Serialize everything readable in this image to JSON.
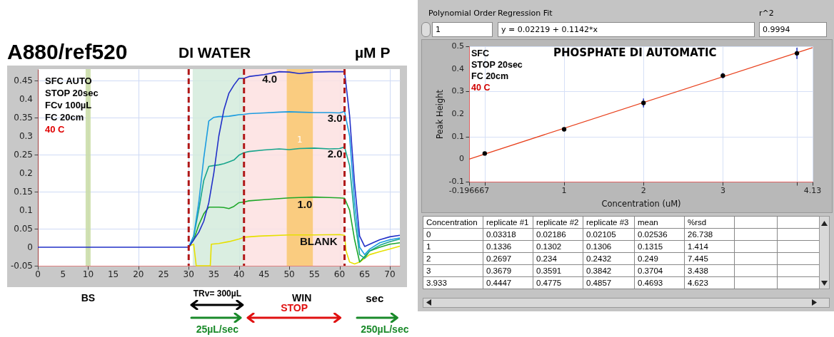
{
  "chart_data": [
    {
      "type": "line",
      "title": "A880/ref520",
      "subtitle": "DI WATER",
      "legend_title": "µM P",
      "xlabel": "sec",
      "xlim": [
        0,
        72
      ],
      "xticks": [
        0,
        5,
        10,
        15,
        20,
        25,
        30,
        35,
        40,
        45,
        50,
        55,
        60,
        65,
        70
      ],
      "ylim": [
        -0.05,
        0.48
      ],
      "yticks": [
        -0.05,
        0,
        0.05,
        0.1,
        0.15,
        0.2,
        0.25,
        0.3,
        0.35,
        0.4,
        0.45
      ],
      "grid": true,
      "series": [
        {
          "name": "BLANK",
          "color": "#e6e000",
          "x": [
            30,
            31,
            31.5,
            34.3,
            34.5,
            36,
            38,
            40,
            41,
            44,
            50,
            55,
            60,
            61,
            61.3,
            62,
            63,
            64,
            66,
            68,
            70,
            72
          ],
          "values": [
            0.003,
            0.008,
            -0.05,
            -0.05,
            0.008,
            0.01,
            0.015,
            0.022,
            0.027,
            0.03,
            0.033,
            0.033,
            0.034,
            0.032,
            -0.01,
            -0.04,
            -0.045,
            -0.04,
            -0.02,
            -0.012,
            -0.005,
            0.003
          ]
        },
        {
          "name": "1.0",
          "color": "#1fa82a",
          "x": [
            30,
            31,
            32,
            33,
            34,
            35,
            36,
            37,
            38,
            39,
            40,
            41,
            42,
            45,
            48,
            50,
            52,
            55,
            58,
            60,
            61,
            62,
            63,
            64,
            65,
            66,
            68,
            70,
            72
          ],
          "values": [
            0,
            0.02,
            0.06,
            0.09,
            0.108,
            0.108,
            0.108,
            0.107,
            0.104,
            0.11,
            0.12,
            0.122,
            0.125,
            0.128,
            0.131,
            0.133,
            0.134,
            0.135,
            0.134,
            0.133,
            0.132,
            0.1,
            0.02,
            -0.04,
            -0.025,
            -0.01,
            0,
            0.008,
            0.012
          ]
        },
        {
          "name": "2.0",
          "color": "#16a58c",
          "x": [
            30,
            31,
            32,
            33,
            34,
            35,
            36,
            37,
            38,
            39,
            40,
            41,
            42,
            45,
            48,
            50,
            52,
            55,
            58,
            60,
            61,
            62,
            63,
            64,
            65,
            66,
            68,
            70,
            72
          ],
          "values": [
            0,
            0.03,
            0.1,
            0.18,
            0.218,
            0.22,
            0.222,
            0.225,
            0.23,
            0.235,
            0.248,
            0.255,
            0.258,
            0.262,
            0.265,
            0.263,
            0.266,
            0.267,
            0.265,
            0.266,
            0.27,
            0.22,
            0.08,
            -0.02,
            -0.03,
            -0.01,
            0.005,
            0.015,
            0.022
          ]
        },
        {
          "name": "3.0",
          "color": "#1c9ce0",
          "x": [
            30,
            31,
            32,
            33,
            34,
            35,
            36,
            37,
            38,
            39,
            40,
            41,
            42,
            45,
            48,
            50,
            52,
            55,
            58,
            60,
            61,
            62,
            63,
            64,
            65,
            66,
            68,
            70,
            72
          ],
          "values": [
            0,
            0.03,
            0.12,
            0.24,
            0.34,
            0.35,
            0.352,
            0.352,
            0.353,
            0.355,
            0.357,
            0.358,
            0.36,
            0.362,
            0.364,
            0.365,
            0.364,
            0.363,
            0.363,
            0.362,
            0.366,
            0.3,
            0.12,
            0,
            -0.02,
            -0.005,
            0.012,
            0.02,
            0.025
          ]
        },
        {
          "name": "4.0",
          "color": "#2230c8",
          "x": [
            0,
            5,
            10,
            15,
            20,
            25,
            30,
            31,
            32,
            33,
            34,
            35,
            36,
            37,
            38,
            39,
            40,
            41,
            42,
            45,
            48,
            50,
            52,
            55,
            58,
            60,
            61,
            62,
            63,
            64,
            65,
            66,
            68,
            70,
            72
          ],
          "values": [
            0,
            0,
            0,
            0,
            0,
            0,
            0,
            0.02,
            0.04,
            0.07,
            0.12,
            0.2,
            0.3,
            0.37,
            0.415,
            0.437,
            0.455,
            0.455,
            0.46,
            0.465,
            0.473,
            0.472,
            0.468,
            0.472,
            0.473,
            0.473,
            0.473,
            0.355,
            0.17,
            0.03,
            0.002,
            0.008,
            0.02,
            0.028,
            0.032
          ]
        }
      ],
      "bands": [
        {
          "axis": "x",
          "from": 9.5,
          "to": 10.5,
          "color": "#c9dca4"
        },
        {
          "axis": "x",
          "from": 30.8,
          "to": 41,
          "color": "#d3ebdc"
        },
        {
          "axis": "x",
          "from": 41,
          "to": 60.8,
          "color": "#fde0e0"
        },
        {
          "axis": "x",
          "from": 49.5,
          "to": 54.7,
          "label": "1",
          "color": "#f9c86e"
        }
      ],
      "ref_lines": [
        {
          "axis": "x",
          "value": 30,
          "color": "#b01818",
          "line_style": "dashed"
        },
        {
          "axis": "x",
          "value": 41,
          "color": "#b01818",
          "line_style": "dashed"
        },
        {
          "axis": "x",
          "value": 61,
          "color": "#b01818",
          "line_style": "dashed"
        }
      ],
      "annotations": [
        "SFC AUTO",
        "STOP 20sec",
        "FCv 100µL",
        "FC 20cm",
        "40 C",
        "BS",
        "TRv= 300µL",
        "25µL/sec",
        "WIN",
        "STOP",
        "250µL/sec"
      ]
    },
    {
      "type": "scatter",
      "title": "PHOSPHATE  DI AUTOMATIC",
      "xlabel": "Concentration (uM)",
      "ylabel": "Peak Height",
      "xlim": [
        -0.196667,
        4.13
      ],
      "xticks": [
        -0.196667,
        {
          "value": 0,
          "label": null
        },
        1,
        2,
        3,
        {
          "value": 3.933,
          "label": null
        },
        4.13
      ],
      "ylim": [
        -0.1,
        0.5
      ],
      "yticks": [
        -0.1,
        0,
        0.1,
        0.2,
        0.3,
        0.4,
        0.5
      ],
      "grid": true,
      "series": [
        {
          "type": "line",
          "color": "#e8401c",
          "x": [
            -0.196667,
            4.13
          ],
          "values": [
            0,
            0.494
          ]
        },
        {
          "type": "scatter",
          "marker": "circle",
          "color": "#000000",
          "x": [
            0,
            1,
            2,
            3,
            3.933
          ],
          "values": [
            0.025,
            0.132,
            0.249,
            0.37,
            0.469
          ],
          "errors": [
            null,
            null,
            0.02,
            0.012,
            0.025
          ]
        }
      ],
      "annotations": [
        "SFC",
        "STOP 20sec",
        "FC 20cm",
        "40 C",
        "Polynomial Order",
        "1",
        "Regression Fit",
        "y = 0.02219 + 0.1142*x",
        "r^2",
        "0.9994"
      ]
    },
    {
      "type": "other",
      "annotations": [
        "Concentration",
        "replicate #1",
        "replicate #2",
        "replicate #3",
        "mean",
        "%rsd",
        "0",
        "0.03318",
        "0.02186",
        "0.02105",
        "0.02536",
        "26.738",
        "1",
        "0.1336",
        "0.1302",
        "0.1306",
        "0.1315",
        "1.414",
        "2",
        "0.2697",
        "0.234",
        "0.2432",
        "0.249",
        "7.445",
        "3",
        "0.3679",
        "0.3591",
        "0.3842",
        "0.3704",
        "3.438",
        "3.933",
        "0.4447",
        "0.4775",
        "0.4857",
        "0.4693",
        "4.623"
      ]
    }
  ]
}
